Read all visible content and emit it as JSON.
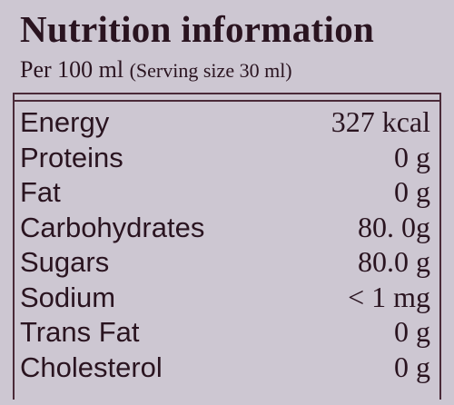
{
  "label": {
    "title": "Nutrition information",
    "per": "Per 100 ml",
    "serving": "(Serving size 30 ml)",
    "rows": [
      {
        "nutrient": "Energy",
        "amount": "327 kcal"
      },
      {
        "nutrient": "Proteins",
        "amount": "0 g"
      },
      {
        "nutrient": "Fat",
        "amount": "0 g"
      },
      {
        "nutrient": "Carbohydrates",
        "amount": "80. 0g"
      },
      {
        "nutrient": "Sugars",
        "amount": "80.0 g"
      },
      {
        "nutrient": "Sodium",
        "amount": "< 1 mg"
      },
      {
        "nutrient": "Trans Fat",
        "amount": "0 g"
      },
      {
        "nutrient": "Cholesterol",
        "amount": "0 g"
      }
    ]
  }
}
